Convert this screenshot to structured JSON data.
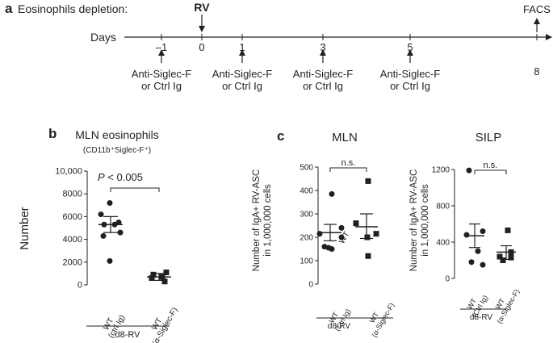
{
  "panel_a": {
    "letter": "a",
    "title": "Eosinophils depletion:",
    "axis_label": "Days",
    "ticks": [
      "–1",
      "0",
      "1",
      "3",
      "5",
      "8"
    ],
    "infection_label": "RV",
    "readout_label": "FACS",
    "treatment_line1": "Anti-Siglec-F",
    "treatment_line2": "or Ctrl Ig"
  },
  "panel_b": {
    "letter": "b",
    "title": "MLN eosinophils",
    "subtitle": "(CD11b⁺Siglec-F⁺)",
    "pvalue_p": "P",
    "pvalue_rest": " < 0.005",
    "group_line1": [
      "WT",
      "WT"
    ],
    "group_line2": [
      "(ctrl  Ig)",
      "(α-Siglec-F)"
    ],
    "bracket_label": "d8-RV"
  },
  "panel_c": {
    "letter": "c",
    "group_line1": [
      "WT",
      "WT"
    ],
    "group_line2": [
      "(Ctrl Ig)",
      "(α-Siglec-F)"
    ],
    "bracket_label": "d8-RV",
    "sig_label": "n.s."
  },
  "colors": {
    "ink": "#231f20",
    "marker": "#231f20"
  },
  "chart_data": [
    {
      "type": "scatter",
      "title": "MLN eosinophils",
      "subtitle": "(CD11b⁺Siglec-F⁺)",
      "ylabel": "Number",
      "ylim": [
        0,
        10000
      ],
      "yticks": [
        0,
        2000,
        4000,
        6000,
        8000,
        10000
      ],
      "ytick_labels": [
        "0",
        "2000",
        "4000",
        "6000",
        "8000",
        "10,000"
      ],
      "categories": [
        "WT (ctrl  Ig)",
        "WT (α-Siglec-F)"
      ],
      "series": [
        {
          "marker": "circle",
          "values": [
            7200,
            6200,
            5500,
            5300,
            5300,
            4600,
            4300,
            2100
          ],
          "mean": 5300,
          "sem_range": [
            4600,
            6000
          ]
        },
        {
          "marker": "square",
          "values": [
            1100,
            900,
            700,
            600,
            300
          ],
          "mean": 700,
          "sem_range": [
            400,
            1000
          ]
        }
      ],
      "annotation": "P < 0.005"
    },
    {
      "type": "scatter",
      "title": "MLN",
      "ylabel": "Number of IgA+ RV-ASC in 1,000,000 cells",
      "ylim": [
        0,
        500
      ],
      "yticks": [
        0,
        100,
        200,
        300,
        400,
        500
      ],
      "ytick_labels": [
        "0",
        "100",
        "200",
        "300",
        "400",
        "500"
      ],
      "categories": [
        "WT (Ctrl Ig)",
        "WT (α-Siglec-F)"
      ],
      "series": [
        {
          "marker": "circle",
          "values": [
            385,
            240,
            215,
            200,
            160,
            150,
            155
          ],
          "mean": 220,
          "sem_range": [
            185,
            255
          ]
        },
        {
          "marker": "square",
          "values": [
            440,
            260,
            215,
            200,
            120
          ],
          "mean": 245,
          "sem_range": [
            195,
            300
          ]
        }
      ],
      "annotation": "n.s."
    },
    {
      "type": "scatter",
      "title": "SILP",
      "ylabel": "Number of IgA+ RV-ASC in 1,000,000 cells",
      "ylim": [
        0,
        1200
      ],
      "yticks": [
        0,
        400,
        800,
        1200
      ],
      "ytick_labels": [
        "0",
        "400",
        "800",
        "1200"
      ],
      "categories": [
        "WT (Ctrl Ig)",
        "WT (α-Siglec-F)"
      ],
      "series": [
        {
          "marker": "circle",
          "values": [
            1190,
            520,
            480,
            300,
            180,
            150
          ],
          "mean": 470,
          "sem_range": [
            340,
            600
          ]
        },
        {
          "marker": "square",
          "values": [
            530,
            290,
            240,
            230,
            200
          ],
          "mean": 290,
          "sem_range": [
            210,
            360
          ]
        }
      ],
      "annotation": "n.s."
    }
  ]
}
